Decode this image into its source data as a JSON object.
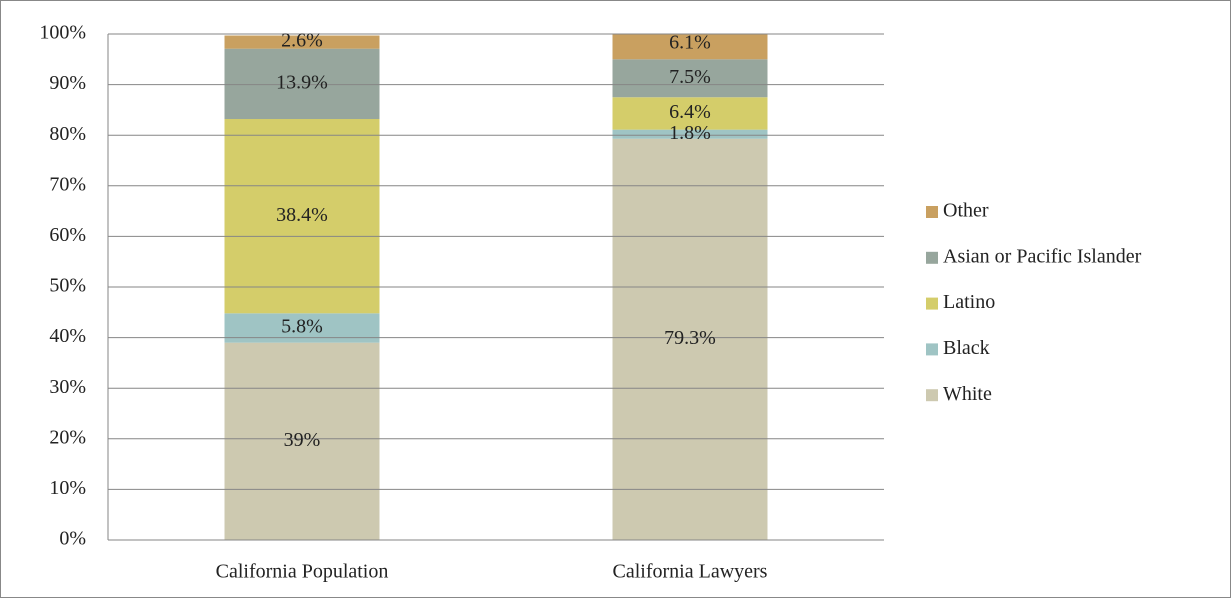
{
  "chart_data": {
    "type": "stacked_bar",
    "categories": [
      "California Population",
      "California Lawyers"
    ],
    "series": [
      {
        "name": "White",
        "color": "#cdc9b0",
        "values": [
          39,
          79.3
        ],
        "value_labels": [
          "39%",
          "79.3%"
        ]
      },
      {
        "name": "Black",
        "color": "#9fc4c4",
        "values": [
          5.8,
          1.8
        ],
        "value_labels": [
          "5.8%",
          "1.8%"
        ]
      },
      {
        "name": "Latino",
        "color": "#d4cd6a",
        "values": [
          38.4,
          6.4
        ],
        "value_labels": [
          "38.4%",
          "6.4%"
        ]
      },
      {
        "name": "Asian or Pacific Islander",
        "color": "#97a69d",
        "values": [
          13.9,
          7.5
        ],
        "value_labels": [
          "13.9%",
          "7.5%"
        ]
      },
      {
        "name": "Other",
        "color": "#c9a060",
        "values": [
          2.6,
          6.1
        ],
        "value_labels": [
          "2.6%",
          "6.1%"
        ]
      }
    ],
    "ylim": [
      0,
      100
    ],
    "yticks": [
      {
        "value": 0,
        "label": "0%"
      },
      {
        "value": 10,
        "label": "10%"
      },
      {
        "value": 20,
        "label": "20%"
      },
      {
        "value": 30,
        "label": "30%"
      },
      {
        "value": 40,
        "label": "40%"
      },
      {
        "value": 50,
        "label": "50%"
      },
      {
        "value": 60,
        "label": "60%"
      },
      {
        "value": 70,
        "label": "70%"
      },
      {
        "value": 80,
        "label": "80%"
      },
      {
        "value": 90,
        "label": "90%"
      },
      {
        "value": 100,
        "label": "100%"
      }
    ],
    "grid": true,
    "legend": "right"
  }
}
